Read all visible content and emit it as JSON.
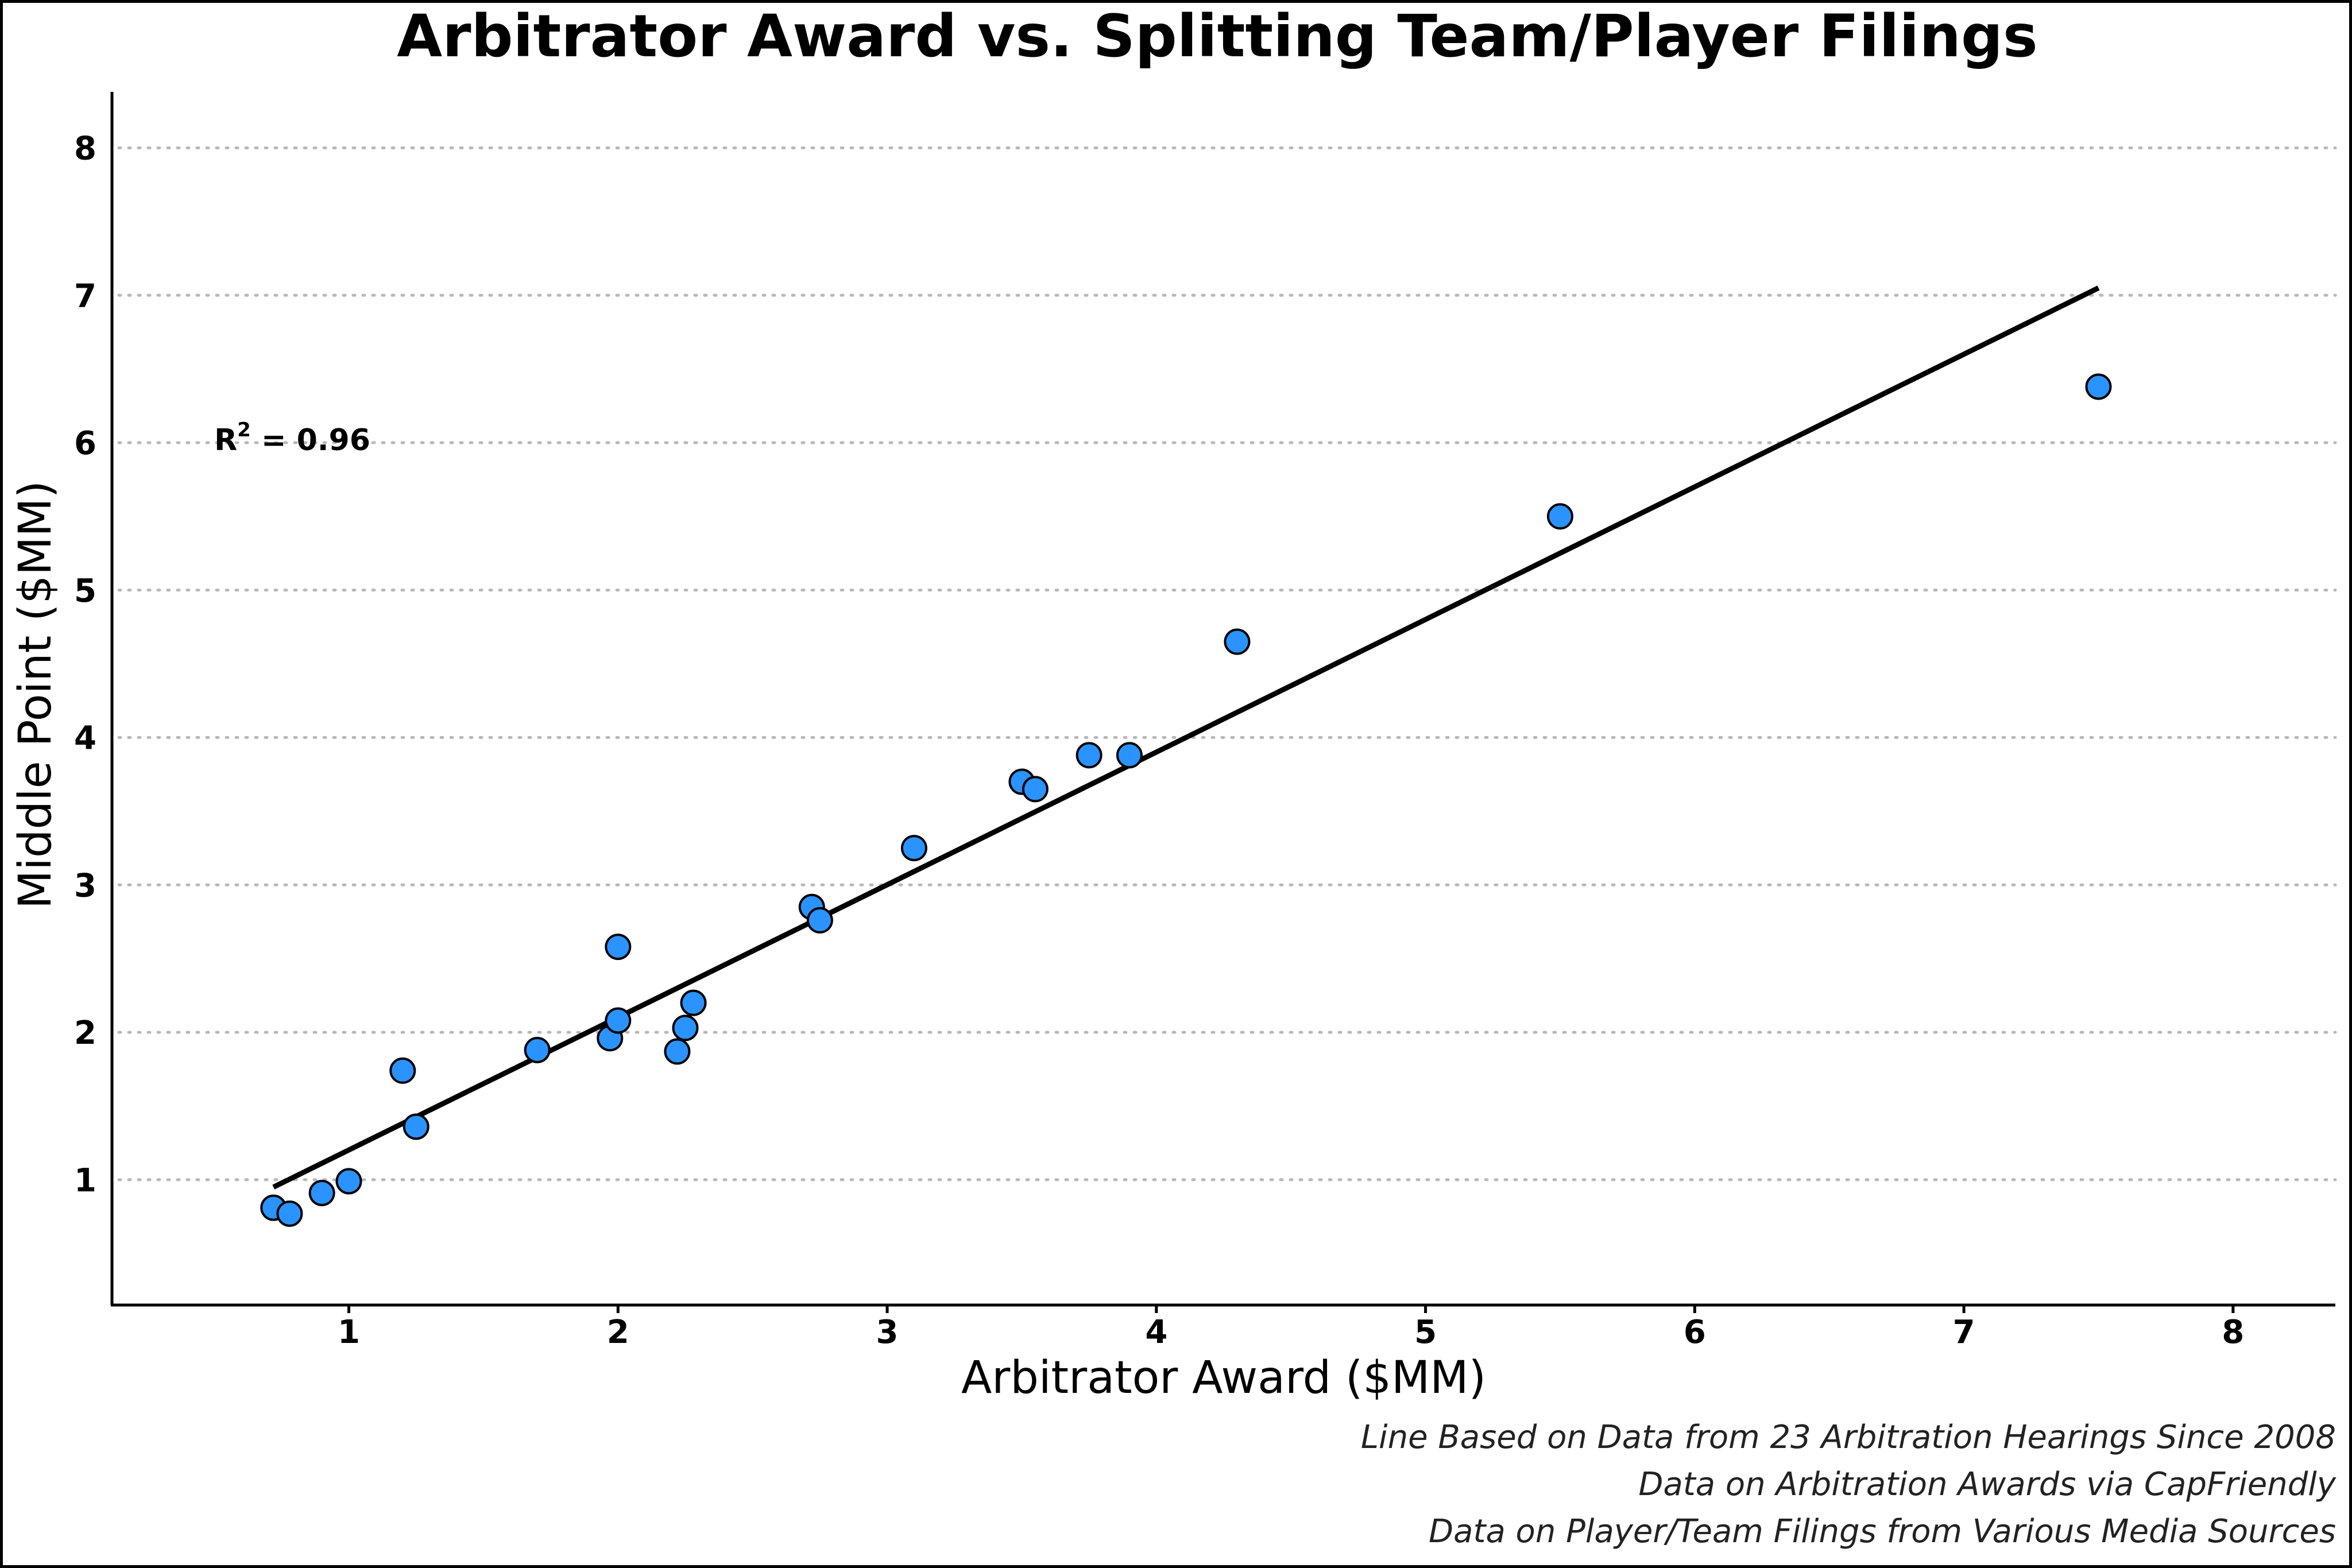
{
  "chart_data": {
    "type": "scatter",
    "title": "Arbitrator Award vs. Splitting Team/Player Filings",
    "xlabel": "Arbitrator Award ($MM)",
    "ylabel": "Middle Point ($MM)",
    "xlim": [
      0.12,
      8.38
    ],
    "ylim": [
      0.15,
      8.38
    ],
    "xticks": [
      1,
      2,
      3,
      4,
      5,
      6,
      7,
      8
    ],
    "yticks": [
      1,
      2,
      3,
      4,
      5,
      6,
      7,
      8
    ],
    "grid": "horizontal dotted",
    "annotation": {
      "label": "R",
      "superscript": "2",
      "value": " = 0.96",
      "x": 0.5,
      "y": 5.95
    },
    "fit_line": {
      "x": [
        0.72,
        7.5
      ],
      "y": [
        0.95,
        7.05
      ]
    },
    "colors": {
      "point": "#2b93ff",
      "line": "#000000"
    },
    "points": [
      {
        "x": 0.72,
        "y": 0.81
      },
      {
        "x": 0.78,
        "y": 0.77
      },
      {
        "x": 0.9,
        "y": 0.91
      },
      {
        "x": 1.0,
        "y": 0.99
      },
      {
        "x": 1.2,
        "y": 1.74
      },
      {
        "x": 1.25,
        "y": 1.36
      },
      {
        "x": 1.7,
        "y": 1.88
      },
      {
        "x": 1.97,
        "y": 1.96
      },
      {
        "x": 2.0,
        "y": 2.08
      },
      {
        "x": 2.0,
        "y": 2.58
      },
      {
        "x": 2.22,
        "y": 1.87
      },
      {
        "x": 2.25,
        "y": 2.03
      },
      {
        "x": 2.28,
        "y": 2.2
      },
      {
        "x": 2.72,
        "y": 2.85
      },
      {
        "x": 2.75,
        "y": 2.76
      },
      {
        "x": 3.1,
        "y": 3.25
      },
      {
        "x": 3.5,
        "y": 3.7
      },
      {
        "x": 3.55,
        "y": 3.65
      },
      {
        "x": 3.75,
        "y": 3.88
      },
      {
        "x": 3.9,
        "y": 3.88
      },
      {
        "x": 4.3,
        "y": 4.65
      },
      {
        "x": 5.5,
        "y": 5.5
      },
      {
        "x": 7.5,
        "y": 6.38
      }
    ]
  },
  "captions": [
    "Line Based on Data from 23 Arbitration Hearings Since 2008",
    "Data on Arbitration Awards via CapFriendly",
    "Data on Player/Team Filings from Various Media Sources"
  ]
}
